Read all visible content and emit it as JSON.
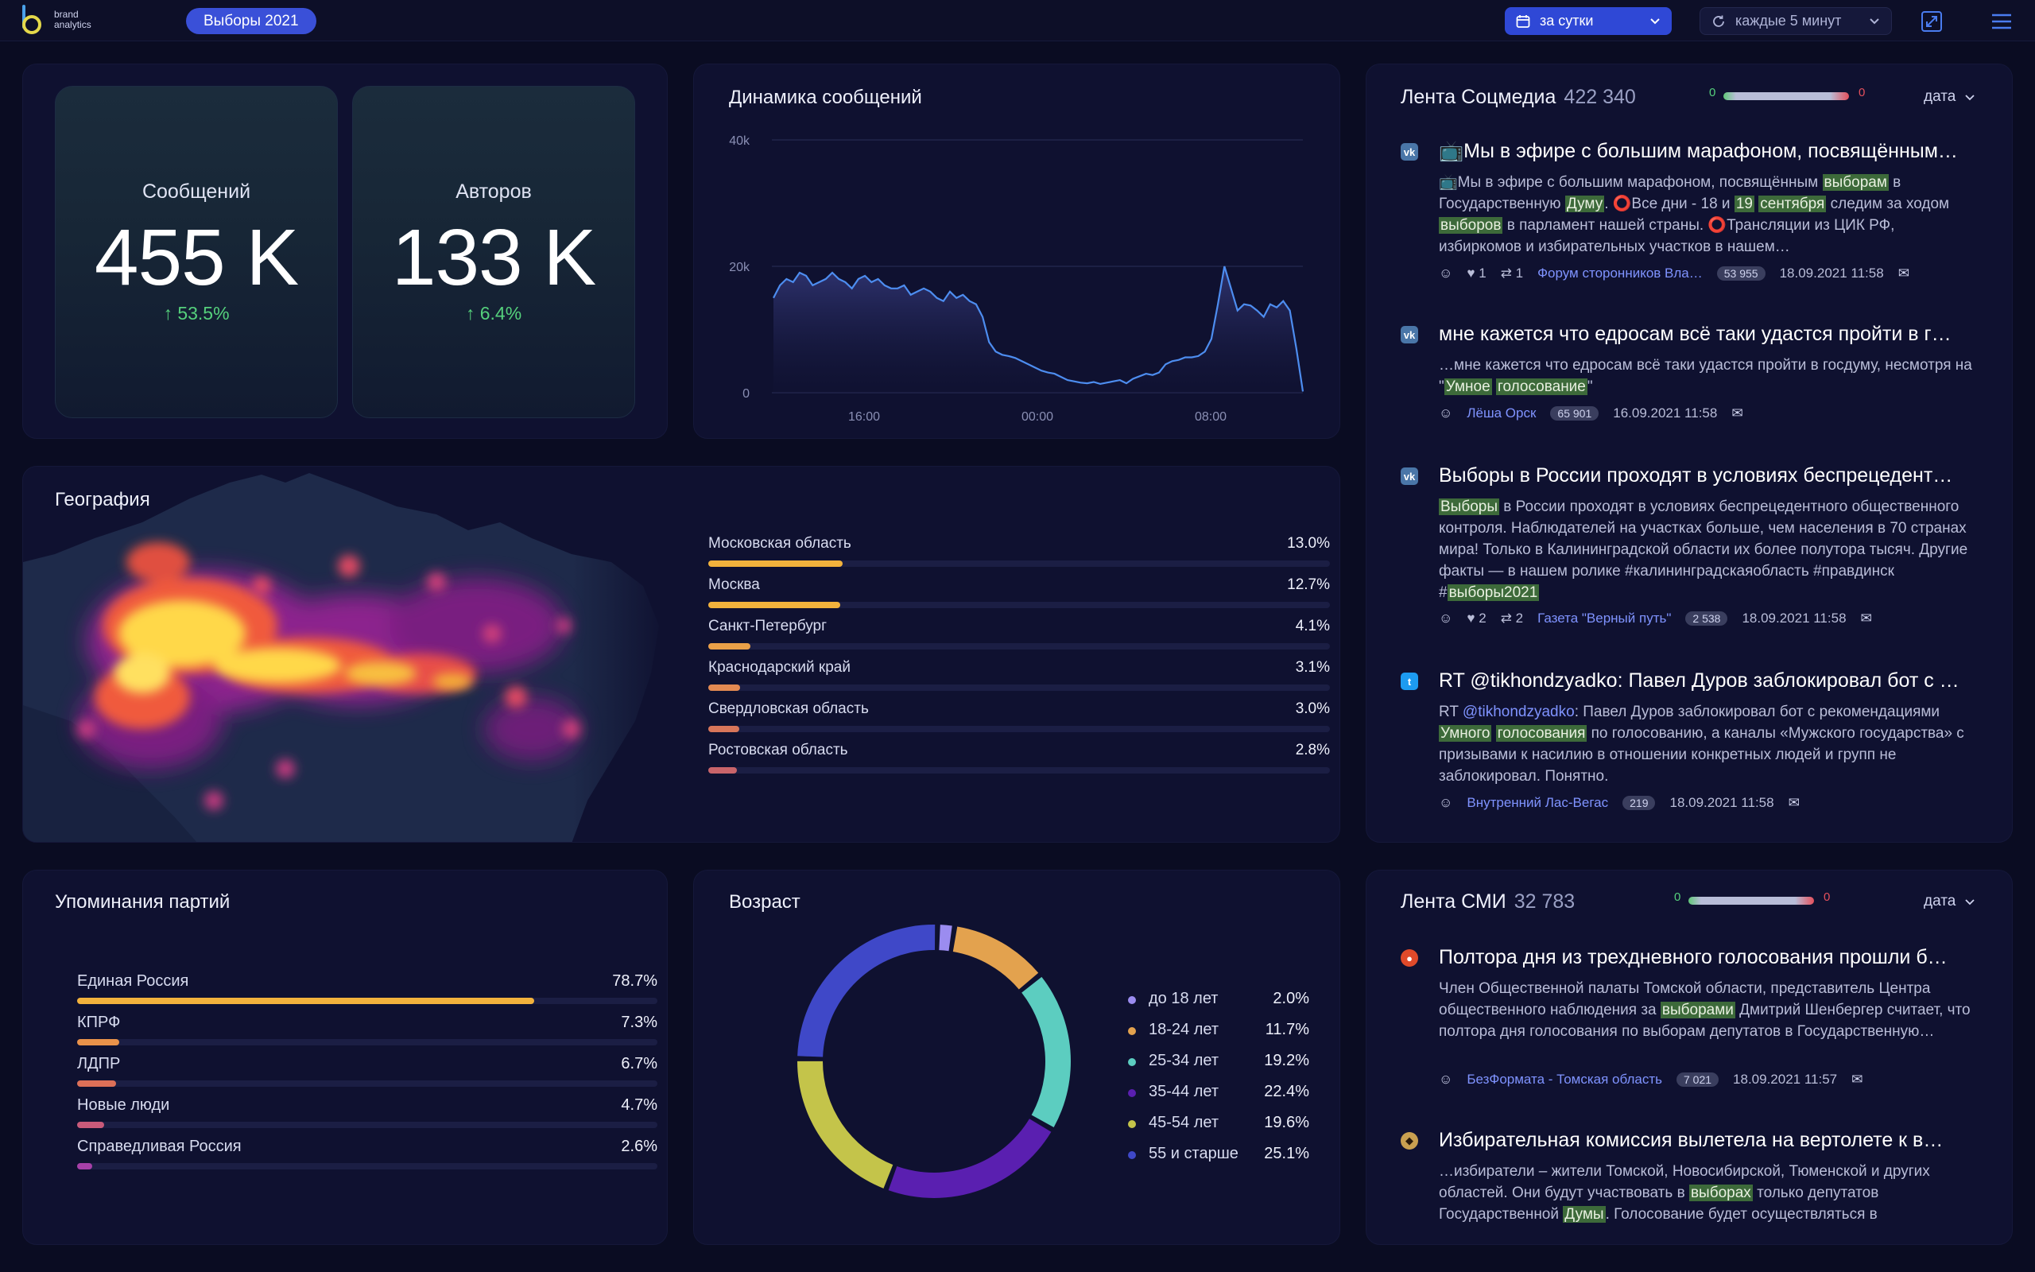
{
  "app": {
    "logo_line1": "brand",
    "logo_line2": "analytics",
    "project": "Выборы 2021"
  },
  "toolbar": {
    "period_label": "за сутки",
    "refresh_label": "каждые 5 минут",
    "accent_color": "#2f48d6"
  },
  "kpis": [
    {
      "label": "Сообщений",
      "value": "455 K",
      "delta": "↑ 53.5%"
    },
    {
      "label": "Авторов",
      "value": "133 K",
      "delta": "↑ 6.4%"
    }
  ],
  "dynamics": {
    "title": "Динамика сообщений",
    "y_ticks": [
      "40k",
      "20k",
      "0"
    ],
    "x_ticks": [
      "16:00",
      "00:00",
      "08:00"
    ]
  },
  "chart_data": {
    "type": "area",
    "title": "Динамика сообщений",
    "xlabel": "",
    "ylabel": "",
    "ylim": [
      0,
      40000
    ],
    "grid": true,
    "x_tick_labels": [
      "16:00",
      "00:00",
      "08:00"
    ],
    "series": [
      {
        "values": [
          15000,
          17000,
          18000,
          17500,
          19000,
          18500,
          17000,
          17500,
          18000,
          19000,
          18000,
          17500,
          16500,
          18000,
          18500,
          17500,
          18000,
          17000,
          16500,
          16500,
          17000,
          15500,
          16000,
          16500,
          16000,
          15000,
          14500,
          16000,
          15000,
          15500,
          14500,
          14000,
          12000,
          8000,
          6500,
          6000,
          5800,
          5500,
          5000,
          4500,
          4000,
          3500,
          3200,
          3000,
          2500,
          2000,
          1800,
          1600,
          1500,
          1700,
          1400,
          1600,
          1800,
          2000,
          1500,
          2200,
          2600,
          3000,
          2800,
          3200,
          4500,
          5000,
          5200,
          5600,
          5600,
          5800,
          6500,
          8500,
          14000,
          20000,
          16500,
          13000,
          14000,
          13800,
          13000,
          12000,
          14000,
          13500,
          14500,
          13000,
          7000,
          200
        ]
      }
    ]
  },
  "geography": {
    "title": "География",
    "regions": [
      {
        "name": "Московская область",
        "pct": "13.0%",
        "value": 13.0,
        "color": "#f2b23c"
      },
      {
        "name": "Москва",
        "pct": "12.7%",
        "value": 12.7,
        "color": "#f2b23c"
      },
      {
        "name": "Санкт-Петербург",
        "pct": "4.1%",
        "value": 4.1,
        "color": "#eaa048"
      },
      {
        "name": "Краснодарский край",
        "pct": "3.1%",
        "value": 3.1,
        "color": "#e38a52"
      },
      {
        "name": "Свердловская область",
        "pct": "3.0%",
        "value": 3.0,
        "color": "#d8765a"
      },
      {
        "name": "Ростовская область",
        "pct": "2.8%",
        "value": 2.8,
        "color": "#c9646a"
      }
    ]
  },
  "parties": {
    "title": "Упоминания партий",
    "items": [
      {
        "name": "Единая Россия",
        "pct": "78.7%",
        "value": 78.7,
        "color": "#f2b23c"
      },
      {
        "name": "КПРФ",
        "pct": "7.3%",
        "value": 7.3,
        "color": "#e9924a"
      },
      {
        "name": "ЛДПР",
        "pct": "6.7%",
        "value": 6.7,
        "color": "#dd7058"
      },
      {
        "name": "Новые люди",
        "pct": "4.7%",
        "value": 4.7,
        "color": "#c95a7a"
      },
      {
        "name": "Справедливая Россия",
        "pct": "2.6%",
        "value": 2.6,
        "color": "#a640a8"
      }
    ]
  },
  "age": {
    "title": "Возраст",
    "items": [
      {
        "name": "до 18 лет",
        "pct": "2.0%",
        "value": 2.0,
        "color": "#9b8cf0"
      },
      {
        "name": "18-24 лет",
        "pct": "11.7%",
        "value": 11.7,
        "color": "#e3a24e"
      },
      {
        "name": "25-34 лет",
        "pct": "19.2%",
        "value": 19.2,
        "color": "#5ccdc0"
      },
      {
        "name": "35-44 лет",
        "pct": "22.4%",
        "value": 22.4,
        "color": "#5a1fb0"
      },
      {
        "name": "45-54 лет",
        "pct": "19.6%",
        "value": 19.6,
        "color": "#c4c44a"
      },
      {
        "name": "55 и старше",
        "pct": "25.1%",
        "value": 25.1,
        "color": "#3f48c8"
      }
    ]
  },
  "social_feed": {
    "title": "Лента Соцмедиа",
    "count": "422 340",
    "pos": "0",
    "neg": "0",
    "sort_label": "дата",
    "posts": [
      {
        "network": "vk",
        "title": "📺Мы в эфире с большим марафоном, посвящённым…",
        "body_html": "📺Мы в эфире с большим марафоном, посвящённым <mark>выборам</mark> в Государственную <mark>Думу</mark>. ⭕Все дни - 18 и <mark>19</mark> <mark>сентября</mark> следим за ходом <mark>выборов</mark> в парламент нашей страны. ⭕Трансляции из ЦИК РФ, избиркомов и избирательных участков в нашем…",
        "likes": "1",
        "shares": "1",
        "source": "Форум сторонников Вла…",
        "audience": "53 955",
        "date": "18.09.2021 11:58"
      },
      {
        "network": "vk",
        "title": "мне кажется что едросам всё таки удастся пройти в г…",
        "body_html": "…мне кажется что едросам всё таки удастся пройти в госдуму, несмотря на \"<mark>Умное</mark> <mark>голосование</mark>\"",
        "likes": "",
        "shares": "",
        "source": "Лёша Орск",
        "audience": "65 901",
        "date": "16.09.2021 11:58"
      },
      {
        "network": "vk",
        "title": "Выборы в России проходят в условиях беспрецедент…",
        "body_html": "<mark>Выборы</mark> в России проходят в условиях беспрецедентного общественного контроля. Наблюдателей на участках больше, чем населения в 70 странах мира! Только в Калининградской области их более полутора тысяч.  Другие факты — в нашем ролике #калининградскаяобласть #правдинск #<mark>выборы2021</mark>",
        "likes": "2",
        "shares": "2",
        "source": "Газета \"Верный путь\"",
        "audience": "2 538",
        "date": "18.09.2021 11:58"
      },
      {
        "network": "tw",
        "title": "RT @tikhondzyadko: Павел Дуров заблокировал бот с …",
        "body_html": "RT <span style=\"color:#7f93ff\">@tikhondzyadko</span>: Павел Дуров заблокировал бот с рекомендациями <mark>Умного</mark> <mark>голосования</mark> по голосованию, а каналы «Мужского государства» с призывами к насилию в отношении конкретных людей и групп не заблокировал. Понятно.",
        "likes": "",
        "shares": "",
        "source": "Внутренний Лас-Вегас",
        "audience": "219",
        "date": "18.09.2021 11:58"
      }
    ]
  },
  "media_feed": {
    "title": "Лента СМИ",
    "count": "32 783",
    "pos": "0",
    "neg": "0",
    "sort_label": "дата",
    "posts": [
      {
        "network": "smi",
        "title": "Полтора дня из трехдневного голосования прошли б…",
        "body_html": "Член Общественной палаты Томской области, представитель Центра общественного наблюдения за <mark>выборами</mark> Дмитрий Шенбергер считает, что полтора дня голосования по выборам депутатов в Государственную…",
        "source": "БезФормата - Томская область",
        "audience": "7 021",
        "date": "18.09.2021 11:57"
      },
      {
        "network": "smi2",
        "title": "Избирательная комиссия вылетела на вертолете к в…",
        "body_html": "…избиратели – жители Томской, Новосибирской, Тюменской и других областей. Они будут участвовать в <mark>выборах</mark> только депутатов Государственной <mark>Думы</mark>. Голосование будет осуществляться в",
        "source": "",
        "audience": "",
        "date": ""
      }
    ]
  }
}
